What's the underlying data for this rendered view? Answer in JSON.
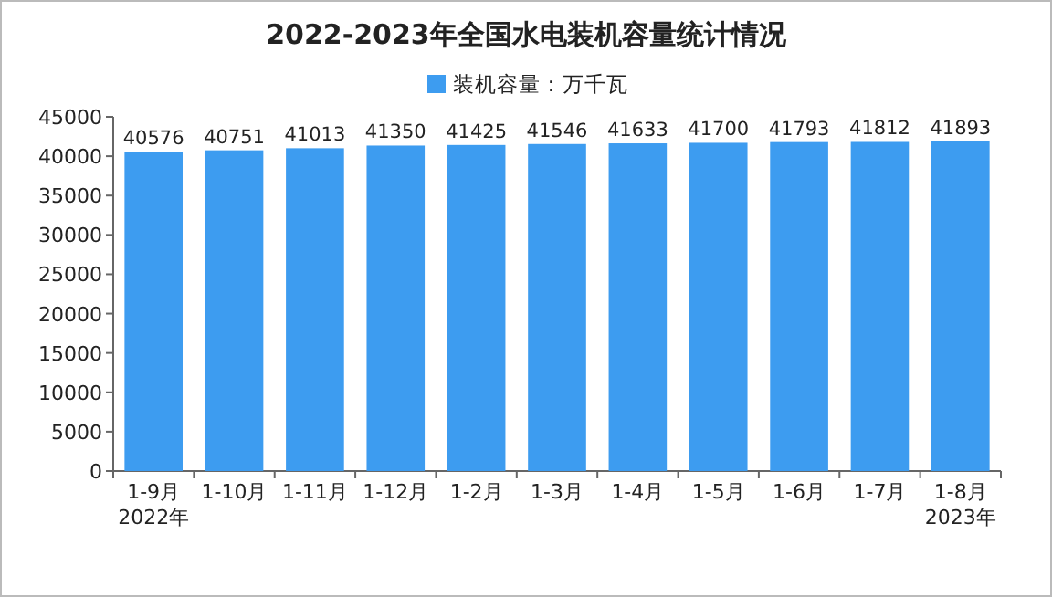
{
  "chart_data": {
    "type": "bar",
    "title": "2022-2023年全国水电装机容量统计情况",
    "categories": [
      "1-9月\n2022年",
      "1-10月",
      "1-11月",
      "1-12月",
      "1-2月",
      "1-3月",
      "1-4月",
      "1-5月",
      "1-6月",
      "1-7月",
      "1-8月\n2023年"
    ],
    "series": [
      {
        "name": "装机容量：万千瓦",
        "color": "#3d9cf0",
        "values": [
          40576,
          40751,
          41013,
          41350,
          41425,
          41546,
          41633,
          41700,
          41793,
          41812,
          41893
        ]
      }
    ],
    "ylim": [
      0,
      45000
    ],
    "yticks": [
      0,
      5000,
      10000,
      15000,
      20000,
      25000,
      30000,
      35000,
      40000,
      45000
    ],
    "data_labels": true,
    "legend": "top",
    "grid": false
  }
}
